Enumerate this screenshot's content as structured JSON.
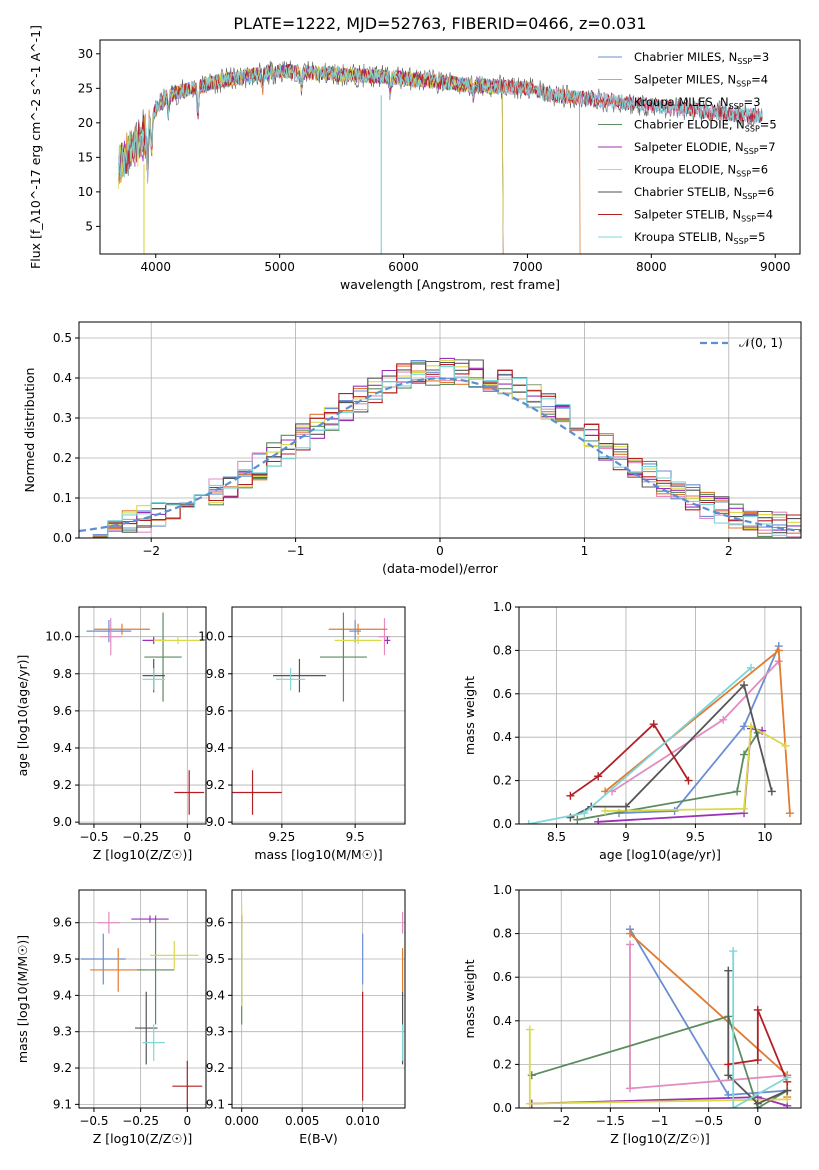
{
  "figure": {
    "title": "PLATE=1222, MJD=52763, FIBERID=0466, z=0.031",
    "colors": {
      "Chabrier MILES": "#6a8fd6",
      "Salpeter MILES": "#e38cc0",
      "Kroupa MILES": "#e07b32",
      "Chabrier ELODIE": "#5b8b5e",
      "Salpeter ELODIE": "#9b30b8",
      "Kroupa ELODIE": "#d9d94a",
      "Chabrier STELIB": "#555555",
      "Salpeter STELIB": "#b22025",
      "Kroupa STELIB": "#7fd6d8"
    }
  },
  "chart_data": [
    {
      "id": "spectrum",
      "type": "line",
      "xlabel": "wavelength [Angstrom, rest frame]",
      "ylabel": "Flux [f_λ10^-17 erg cm^-2 s^-1 A^-1]",
      "xlim": [
        3550,
        9200
      ],
      "ylim": [
        1,
        32
      ],
      "xticks": [
        4000,
        5000,
        6000,
        7000,
        8000,
        9000
      ],
      "yticks": [
        5,
        10,
        15,
        20,
        25,
        30
      ],
      "legend_position": "top-right",
      "legend": [
        {
          "name": "Chabrier MILES",
          "n": 3
        },
        {
          "name": "Salpeter MILES",
          "n": 4
        },
        {
          "name": "Kroupa MILES",
          "n": 3
        },
        {
          "name": "Chabrier ELODIE",
          "n": 5
        },
        {
          "name": "Salpeter ELODIE",
          "n": 7
        },
        {
          "name": "Kroupa ELODIE",
          "n": 6
        },
        {
          "name": "Chabrier STELIB",
          "n": 6
        },
        {
          "name": "Salpeter STELIB",
          "n": 4
        },
        {
          "name": "Kroupa STELIB",
          "n": 5
        }
      ],
      "continuum_x": [
        3700,
        3800,
        3900,
        4000,
        4100,
        4300,
        4500,
        5000,
        5500,
        6000,
        6500,
        7000,
        7200,
        7500,
        8000,
        8500,
        8900
      ],
      "continuum_y": [
        14,
        16,
        18,
        22,
        24,
        25,
        26,
        27.5,
        27,
        26.5,
        25.5,
        25,
        24,
        23.5,
        22.5,
        21.5,
        21
      ]
    },
    {
      "id": "residuals",
      "type": "line",
      "xlabel": "(data-model)/error",
      "ylabel": "Normed distribution",
      "xlim": [
        -2.5,
        2.5
      ],
      "ylim": [
        0,
        0.54
      ],
      "xticks": [
        -2,
        -1,
        0,
        1,
        2
      ],
      "yticks": [
        0.0,
        0.1,
        0.2,
        0.3,
        0.4,
        0.5
      ],
      "legend_position": "top-right",
      "reference_series": {
        "name": "𝒩(0, 1)",
        "mean": 0,
        "std": 1
      },
      "hist_bin_width": 0.1
    },
    {
      "id": "age-Z",
      "type": "scatter",
      "xlabel": "Z [log10(Z/Z☉)]",
      "ylabel": "age  [log10(age/yr)]",
      "xlim": [
        -0.58,
        0.1
      ],
      "ylim": [
        8.99,
        10.16
      ],
      "xticks": [
        -0.5,
        -0.25,
        0.0
      ],
      "yticks": [
        9.0,
        9.2,
        9.4,
        9.6,
        9.8,
        10.0
      ],
      "points": [
        {
          "model": "Chabrier MILES",
          "x": -0.42,
          "xerr": 0.12,
          "y": 10.03,
          "yerr": 0.06
        },
        {
          "model": "Salpeter MILES",
          "x": -0.41,
          "xerr": 0.06,
          "y": 10.0,
          "yerr": 0.1
        },
        {
          "model": "Kroupa MILES",
          "x": -0.35,
          "xerr": 0.15,
          "y": 10.04,
          "yerr": 0.03
        },
        {
          "model": "Chabrier ELODIE",
          "x": -0.13,
          "xerr": 0.1,
          "y": 9.89,
          "yerr": 0.24
        },
        {
          "model": "Salpeter ELODIE",
          "x": -0.18,
          "xerr": 0.06,
          "y": 9.98,
          "yerr": 0.02
        },
        {
          "model": "Kroupa ELODIE",
          "x": -0.05,
          "xerr": 0.13,
          "y": 9.98,
          "yerr": 0.02
        },
        {
          "model": "Chabrier STELIB",
          "x": -0.18,
          "xerr": 0.06,
          "y": 9.79,
          "yerr": 0.09
        },
        {
          "model": "Salpeter STELIB",
          "x": 0.01,
          "xerr": 0.08,
          "y": 9.16,
          "yerr": 0.12
        },
        {
          "model": "Kroupa STELIB",
          "x": -0.18,
          "xerr": 0.06,
          "y": 9.77,
          "yerr": 0.06
        }
      ]
    },
    {
      "id": "age-mass",
      "type": "scatter",
      "xlabel": "mass [log10(M/M☉)]",
      "ylabel": "",
      "xlim": [
        9.08,
        9.67
      ],
      "ylim": [
        8.99,
        10.16
      ],
      "xticks": [
        9.25,
        9.5
      ],
      "yticks": [
        9.0,
        9.2,
        9.4,
        9.6,
        9.8,
        10.0
      ],
      "points": [
        {
          "model": "Chabrier MILES",
          "x": 9.5,
          "xerr": 0.02,
          "y": 10.03,
          "yerr": 0.06
        },
        {
          "model": "Salpeter MILES",
          "x": 9.6,
          "xerr": 0.02,
          "y": 10.0,
          "yerr": 0.1
        },
        {
          "model": "Kroupa MILES",
          "x": 9.51,
          "xerr": 0.1,
          "y": 10.04,
          "yerr": 0.03
        },
        {
          "model": "Chabrier ELODIE",
          "x": 9.46,
          "xerr": 0.08,
          "y": 9.89,
          "yerr": 0.24
        },
        {
          "model": "Salpeter ELODIE",
          "x": 9.61,
          "xerr": 0.01,
          "y": 9.98,
          "yerr": 0.02
        },
        {
          "model": "Kroupa ELODIE",
          "x": 9.51,
          "xerr": 0.08,
          "y": 9.98,
          "yerr": 0.02
        },
        {
          "model": "Chabrier STELIB",
          "x": 9.31,
          "xerr": 0.09,
          "y": 9.79,
          "yerr": 0.09
        },
        {
          "model": "Salpeter STELIB",
          "x": 9.15,
          "xerr": 0.1,
          "y": 9.16,
          "yerr": 0.12
        },
        {
          "model": "Kroupa STELIB",
          "x": 9.28,
          "xerr": 0.05,
          "y": 9.77,
          "yerr": 0.06
        }
      ]
    },
    {
      "id": "weight-age",
      "type": "line",
      "xlabel": "age  [log10(age/yr)]",
      "ylabel": "mass weight",
      "xlim": [
        8.23,
        10.26
      ],
      "ylim": [
        0,
        1.0
      ],
      "xticks": [
        8.5,
        9.0,
        9.5,
        10.0
      ],
      "yticks": [
        0.0,
        0.2,
        0.4,
        0.6,
        0.8,
        1.0
      ],
      "series": [
        {
          "model": "Chabrier MILES",
          "x": [
            8.95,
            9.35,
            9.85,
            10.1
          ],
          "y": [
            0.05,
            0.06,
            0.45,
            0.82
          ]
        },
        {
          "model": "Salpeter MILES",
          "x": [
            8.9,
            9.7,
            10.1
          ],
          "y": [
            0.15,
            0.48,
            0.75
          ]
        },
        {
          "model": "Kroupa MILES",
          "x": [
            8.85,
            10.1,
            10.18
          ],
          "y": [
            0.15,
            0.8,
            0.05
          ]
        },
        {
          "model": "Chabrier ELODIE",
          "x": [
            8.65,
            9.8,
            9.85,
            9.95
          ],
          "y": [
            0.02,
            0.15,
            0.32,
            0.42
          ]
        },
        {
          "model": "Salpeter ELODIE",
          "x": [
            8.8,
            9.85,
            9.9,
            9.98
          ],
          "y": [
            0.01,
            0.05,
            0.44,
            0.43
          ]
        },
        {
          "model": "Kroupa ELODIE",
          "x": [
            8.85,
            9.85,
            9.9,
            10.15
          ],
          "y": [
            0.06,
            0.07,
            0.45,
            0.36
          ]
        },
        {
          "model": "Chabrier STELIB",
          "x": [
            8.6,
            8.75,
            9.0,
            9.85,
            10.05
          ],
          "y": [
            0.03,
            0.08,
            0.08,
            0.64,
            0.15
          ]
        },
        {
          "model": "Salpeter STELIB",
          "x": [
            8.6,
            8.8,
            9.2,
            9.45
          ],
          "y": [
            0.13,
            0.22,
            0.46,
            0.2
          ]
        },
        {
          "model": "Kroupa STELIB",
          "x": [
            8.3,
            8.7,
            9.9
          ],
          "y": [
            0.0,
            0.05,
            0.72
          ]
        }
      ]
    },
    {
      "id": "mass-Z",
      "type": "scatter",
      "xlabel": "Z [log10(Z/Z☉)]",
      "ylabel": "mass [log10(M/M☉)]",
      "xlim": [
        -0.58,
        0.1
      ],
      "ylim": [
        9.09,
        9.69
      ],
      "xticks": [
        -0.5,
        -0.25,
        0.0
      ],
      "yticks": [
        9.1,
        9.2,
        9.3,
        9.4,
        9.5,
        9.6
      ],
      "points": [
        {
          "model": "Chabrier MILES",
          "x": -0.45,
          "xerr": 0.12,
          "y": 9.5,
          "yerr": 0.07
        },
        {
          "model": "Salpeter MILES",
          "x": -0.42,
          "xerr": 0.06,
          "y": 9.6,
          "yerr": 0.03
        },
        {
          "model": "Kroupa MILES",
          "x": -0.37,
          "xerr": 0.15,
          "y": 9.47,
          "yerr": 0.06
        },
        {
          "model": "Chabrier ELODIE",
          "x": -0.17,
          "xerr": 0.1,
          "y": 9.47,
          "yerr": 0.15
        },
        {
          "model": "Salpeter ELODIE",
          "x": -0.2,
          "xerr": 0.1,
          "y": 9.61,
          "yerr": 0.01
        },
        {
          "model": "Kroupa ELODIE",
          "x": -0.07,
          "xerr": 0.13,
          "y": 9.51,
          "yerr": 0.04
        },
        {
          "model": "Chabrier STELIB",
          "x": -0.22,
          "xerr": 0.06,
          "y": 9.31,
          "yerr": 0.1
        },
        {
          "model": "Salpeter STELIB",
          "x": 0.0,
          "xerr": 0.08,
          "y": 9.15,
          "yerr": 0.07
        },
        {
          "model": "Kroupa STELIB",
          "x": -0.18,
          "xerr": 0.06,
          "y": 9.27,
          "yerr": 0.05
        }
      ]
    },
    {
      "id": "mass-EBV",
      "type": "scatter",
      "xlabel": "E(B-V)",
      "ylabel": "",
      "xlim": [
        -0.0008,
        0.0135
      ],
      "ylim": [
        9.09,
        9.69
      ],
      "xticks": [
        0.0,
        0.005,
        0.01
      ],
      "yticks": [
        9.1,
        9.2,
        9.3,
        9.4,
        9.5,
        9.6
      ],
      "points": [
        {
          "model": "Chabrier MILES",
          "x": 0.01,
          "xerr": 0,
          "y": 9.5,
          "yerr": 0.07
        },
        {
          "model": "Salpeter MILES",
          "x": 0.0133,
          "xerr": 0,
          "y": 9.6,
          "yerr": 0.03
        },
        {
          "model": "Kroupa MILES",
          "x": 0.0133,
          "xerr": 0,
          "y": 9.47,
          "yerr": 0.06
        },
        {
          "model": "Chabrier ELODIE",
          "x": 0.0,
          "xerr": 0,
          "y": 9.47,
          "yerr": 0.15
        },
        {
          "model": "Salpeter ELODIE",
          "x": 0.0,
          "xerr": 0,
          "y": 9.61,
          "yerr": 0.01
        },
        {
          "model": "Kroupa ELODIE",
          "x": 0.0,
          "xerr": 0,
          "y": 9.51,
          "yerr": 0.14
        },
        {
          "model": "Chabrier STELIB",
          "x": 0.0133,
          "xerr": 0,
          "y": 9.31,
          "yerr": 0.1
        },
        {
          "model": "Salpeter STELIB",
          "x": 0.01,
          "xerr": 0,
          "y": 9.26,
          "yerr": 0.15
        },
        {
          "model": "Kroupa STELIB",
          "x": 0.0133,
          "xerr": 0,
          "y": 9.27,
          "yerr": 0.05
        }
      ]
    },
    {
      "id": "weight-Z",
      "type": "line",
      "xlabel": "Z [log10(Z/Z☉)]",
      "ylabel": "mass weight",
      "xlim": [
        -2.43,
        0.44
      ],
      "ylim": [
        0,
        1.0
      ],
      "xticks": [
        -2.0,
        -1.5,
        -1.0,
        -0.5,
        0.0
      ],
      "yticks": [
        0.0,
        0.2,
        0.4,
        0.6,
        0.8,
        1.0
      ],
      "series": [
        {
          "model": "Chabrier MILES",
          "x": [
            -1.3,
            -0.3,
            0.3
          ],
          "y": [
            0.82,
            0.06,
            0.08
          ]
        },
        {
          "model": "Salpeter MILES",
          "x": [
            -1.3,
            -1.3,
            0.3
          ],
          "y": [
            0.75,
            0.09,
            0.15
          ]
        },
        {
          "model": "Kroupa MILES",
          "x": [
            -1.3,
            0.3,
            0.3
          ],
          "y": [
            0.8,
            0.15,
            0.05
          ]
        },
        {
          "model": "Chabrier ELODIE",
          "x": [
            -2.3,
            -0.3,
            0.0,
            0.3
          ],
          "y": [
            0.15,
            0.42,
            0.0,
            0.08
          ]
        },
        {
          "model": "Salpeter ELODIE",
          "x": [
            -2.3,
            0.0,
            0.3
          ],
          "y": [
            0.02,
            0.05,
            0.01
          ]
        },
        {
          "model": "Kroupa ELODIE",
          "x": [
            -2.32,
            -2.32,
            0.3
          ],
          "y": [
            0.36,
            0.02,
            0.04
          ]
        },
        {
          "model": "Chabrier STELIB",
          "x": [
            -0.3,
            -0.3,
            0.0,
            0.3
          ],
          "y": [
            0.63,
            0.15,
            0.02,
            0.08
          ]
        },
        {
          "model": "Salpeter STELIB",
          "x": [
            -0.3,
            0.0,
            0.0,
            0.3
          ],
          "y": [
            0.2,
            0.22,
            0.45,
            0.12
          ]
        },
        {
          "model": "Kroupa STELIB",
          "x": [
            -0.25,
            -0.25,
            0.3
          ],
          "y": [
            0.72,
            0.0,
            0.14
          ]
        }
      ]
    }
  ]
}
